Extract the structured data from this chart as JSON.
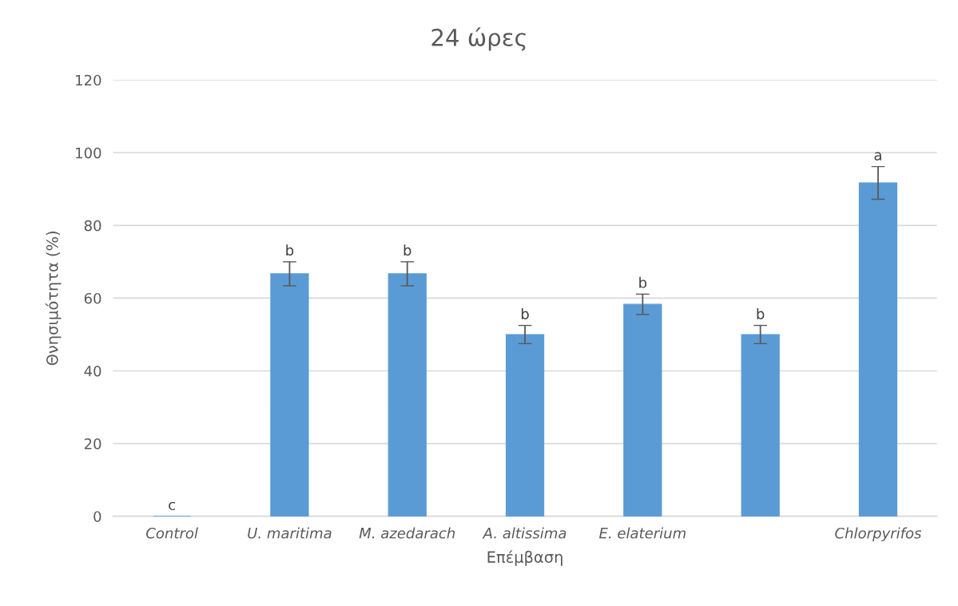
{
  "chart_data": {
    "type": "bar",
    "title": "24 ώρες",
    "xlabel": "Επέμβαση",
    "ylabel": "Θνησιμότητα (%)",
    "categories": [
      "Control",
      "U. maritima",
      "M. azedarach",
      "A. altissima",
      "E. elaterium",
      null,
      "Chlorpyrifos"
    ],
    "values": [
      0,
      66.7,
      66.7,
      50,
      58.3,
      50,
      91.7
    ],
    "errors": [
      null,
      3.3,
      3.3,
      2.5,
      2.8,
      2.5,
      4.5
    ],
    "value_labels": [
      "c",
      "b",
      "b",
      "b",
      "b",
      "b",
      "a"
    ],
    "color": "#5b9bd5",
    "ylim": [
      0,
      120
    ],
    "yticks": [
      0,
      20,
      40,
      60,
      80,
      100,
      120
    ],
    "grid": "y",
    "legend": false
  }
}
